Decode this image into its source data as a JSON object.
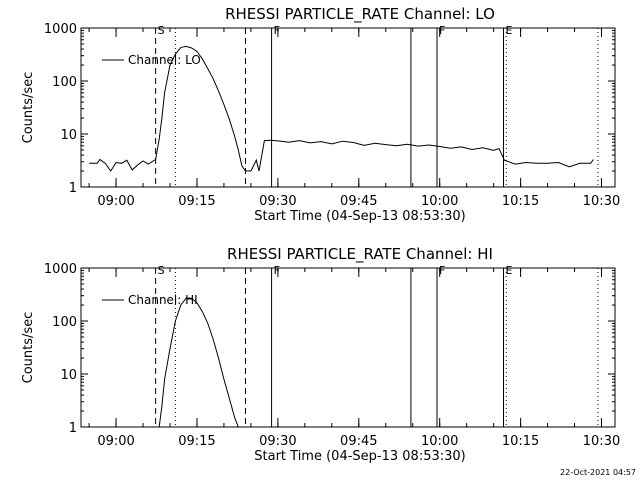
{
  "footer_stamp": "22-Oct-2021 04:57",
  "chart_data": [
    {
      "type": "line",
      "title": "RHESSI PARTICLE_RATE Channel: LO",
      "xlabel": "Start Time (04-Sep-13 08:53:30)",
      "ylabel": "Counts/sec",
      "yscale": "log",
      "ylim": [
        1,
        1000
      ],
      "xlim": [
        "08:53:30",
        "10:32:30"
      ],
      "x_ticks": [
        "09:00",
        "09:15",
        "09:30",
        "09:45",
        "10:00",
        "10:15",
        "10:30"
      ],
      "y_ticks": [
        "1",
        "10",
        "100",
        "1000"
      ],
      "legend": "Channel: LO",
      "markers": [
        {
          "label": "S",
          "time": "09:07:20",
          "style": "dashed"
        },
        {
          "label": "",
          "time": "09:11:00",
          "style": "dotted"
        },
        {
          "label": "",
          "time": "09:24:00",
          "style": "dashed"
        },
        {
          "label": "F",
          "time": "09:28:50",
          "style": "solid"
        },
        {
          "label": "",
          "time": "09:54:40",
          "style": "solid"
        },
        {
          "label": "F",
          "time": "09:59:30",
          "style": "solid"
        },
        {
          "label": "E",
          "time": "10:11:50",
          "style": "solid"
        },
        {
          "label": "",
          "time": "10:12:20",
          "style": "dotted"
        },
        {
          "label": "",
          "time": "10:29:20",
          "style": "dotted"
        }
      ],
      "series": [
        {
          "x": [
            "08:55:00",
            "08:56:30",
            "08:57:00",
            "08:58:00",
            "08:59:00",
            "09:00:00",
            "09:01:00",
            "09:02:00",
            "09:03:00",
            "09:04:00",
            "09:05:00",
            "09:06:00",
            "09:07:20",
            "09:08:00",
            "09:08:30",
            "09:09:00",
            "09:10:00",
            "09:11:00",
            "09:12:00",
            "09:13:00",
            "09:14:00",
            "09:15:00",
            "09:16:00",
            "09:17:00",
            "09:18:00",
            "09:19:00",
            "09:20:00",
            "09:21:00",
            "09:22:00",
            "09:22:40",
            "09:23:20",
            "09:24:00",
            "09:25:00",
            "09:26:00",
            "09:26:30",
            "09:27:30",
            "09:28:30",
            "09:30:00",
            "09:32:00",
            "09:34:00",
            "09:36:00",
            "09:38:00",
            "09:40:00",
            "09:42:00",
            "09:44:00",
            "09:46:00",
            "09:48:00",
            "09:50:00",
            "09:52:00",
            "09:54:00",
            "09:56:00",
            "09:58:00",
            "10:00:00",
            "10:02:00",
            "10:04:00",
            "10:06:00",
            "10:08:00",
            "10:10:00",
            "10:11:00",
            "10:12:00",
            "10:14:00",
            "10:16:00",
            "10:18:00",
            "10:20:00",
            "10:22:00",
            "10:24:00",
            "10:26:00",
            "10:28:00",
            "10:28:30"
          ],
          "values": [
            2.8,
            2.8,
            3.3,
            2.8,
            2.0,
            2.9,
            2.8,
            3.2,
            2.1,
            2.6,
            3.1,
            2.7,
            3.3,
            8,
            20,
            60,
            200,
            320,
            430,
            450,
            420,
            360,
            260,
            170,
            110,
            65,
            36,
            19,
            9,
            5,
            2.5,
            2.0,
            2.0,
            3.2,
            2.0,
            7.5,
            7.6,
            7.4,
            7.0,
            7.5,
            6.8,
            7.2,
            6.5,
            7.3,
            6.9,
            6.1,
            6.7,
            6.3,
            6.0,
            6.4,
            5.9,
            6.2,
            5.8,
            5.4,
            5.7,
            5.1,
            5.5,
            4.9,
            5.3,
            3.2,
            2.7,
            2.9,
            2.8,
            2.8,
            2.9,
            2.4,
            2.8,
            2.8,
            3.3
          ]
        }
      ]
    },
    {
      "type": "line",
      "title": "RHESSI PARTICLE_RATE Channel: HI",
      "xlabel": "Start Time (04-Sep-13 08:53:30)",
      "ylabel": "Counts/sec",
      "yscale": "log",
      "ylim": [
        1,
        1000
      ],
      "xlim": [
        "08:53:30",
        "10:32:30"
      ],
      "x_ticks": [
        "09:00",
        "09:15",
        "09:30",
        "09:45",
        "10:00",
        "10:15",
        "10:30"
      ],
      "y_ticks": [
        "1",
        "10",
        "100",
        "1000"
      ],
      "legend": "Channel: HI",
      "markers": [
        {
          "label": "S",
          "time": "09:07:20",
          "style": "dashed"
        },
        {
          "label": "",
          "time": "09:11:00",
          "style": "dotted"
        },
        {
          "label": "",
          "time": "09:24:00",
          "style": "dashed"
        },
        {
          "label": "F",
          "time": "09:28:50",
          "style": "solid"
        },
        {
          "label": "",
          "time": "09:54:40",
          "style": "solid"
        },
        {
          "label": "F",
          "time": "09:59:30",
          "style": "solid"
        },
        {
          "label": "E",
          "time": "10:11:50",
          "style": "solid"
        },
        {
          "label": "",
          "time": "10:12:20",
          "style": "dotted"
        },
        {
          "label": "",
          "time": "10:29:20",
          "style": "dotted"
        }
      ],
      "series": [
        {
          "x": [
            "09:08:00",
            "09:08:30",
            "09:09:00",
            "09:10:00",
            "09:11:00",
            "09:12:00",
            "09:13:00",
            "09:14:00",
            "09:15:00",
            "09:16:00",
            "09:17:00",
            "09:18:00",
            "09:19:00",
            "09:20:00",
            "09:21:00",
            "09:22:00",
            "09:22:40"
          ],
          "values": [
            1.0,
            2.5,
            8,
            30,
            100,
            200,
            270,
            270,
            220,
            150,
            90,
            45,
            20,
            8,
            3.5,
            1.5,
            1.0
          ]
        }
      ]
    }
  ]
}
